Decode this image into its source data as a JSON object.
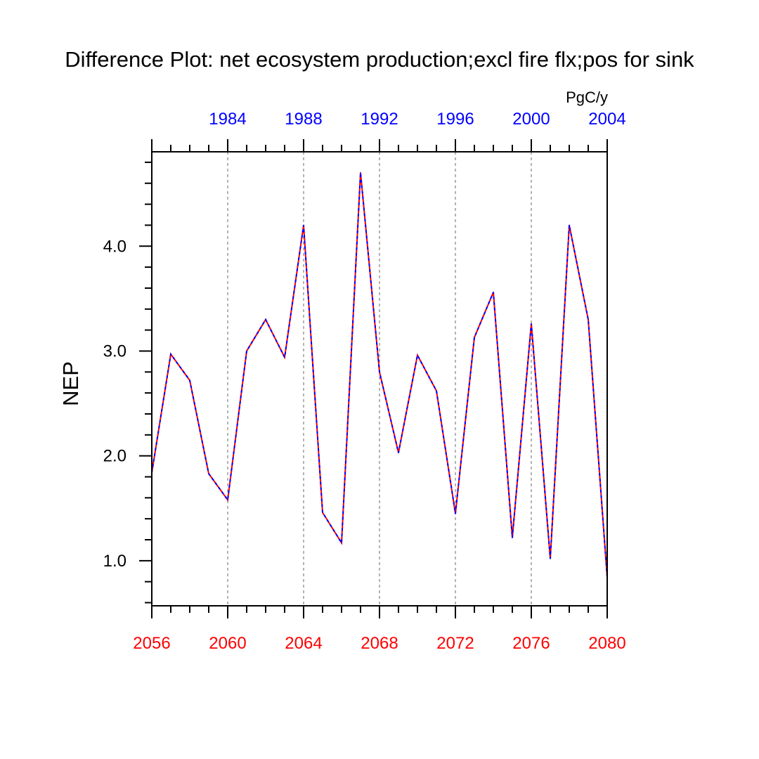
{
  "chart_data": {
    "type": "line",
    "title": "Difference Plot: net ecosystem production;excl fire flx;pos for sink",
    "ylabel": "NEP",
    "units": "PgC/y",
    "xlabel": "",
    "bottom_axis": {
      "color": "#ff0000",
      "range": [
        2056,
        2080
      ],
      "tick_labels": [
        "2056",
        "2060",
        "2064",
        "2068",
        "2072",
        "2076",
        "2080"
      ]
    },
    "top_axis": {
      "color": "#0000ff",
      "range": [
        1980,
        2004
      ],
      "tick_labels": [
        "1984",
        "1988",
        "1992",
        "1996",
        "2000",
        "2004"
      ]
    },
    "ylim": [
      0.57,
      4.9
    ],
    "y_tick_labels": [
      "1.0",
      "2.0",
      "3.0",
      "4.0"
    ],
    "grid": "vertical dashed gray at labeled bottom ticks",
    "x": [
      2056,
      2057,
      2058,
      2059,
      2060,
      2061,
      2062,
      2063,
      2064,
      2065,
      2066,
      2067,
      2068,
      2069,
      2070,
      2071,
      2072,
      2073,
      2074,
      2075,
      2076,
      2077,
      2078,
      2079,
      2080
    ],
    "series": [
      {
        "color": "#ff0000",
        "line_style": "solid",
        "values": [
          1.84,
          2.97,
          2.72,
          1.83,
          1.58,
          3.0,
          3.3,
          2.94,
          4.2,
          1.46,
          1.17,
          4.7,
          2.8,
          2.03,
          2.96,
          2.62,
          1.45,
          3.13,
          3.56,
          1.22,
          3.26,
          1.02,
          4.2,
          3.3,
          0.84
        ]
      },
      {
        "color": "#0000ff",
        "line_style": "dashed",
        "values": [
          1.84,
          2.97,
          2.72,
          1.83,
          1.58,
          3.0,
          3.3,
          2.94,
          4.2,
          1.46,
          1.17,
          4.7,
          2.8,
          2.03,
          2.96,
          2.62,
          1.45,
          3.13,
          3.56,
          1.22,
          3.26,
          1.02,
          4.2,
          3.3,
          0.84
        ]
      }
    ]
  }
}
